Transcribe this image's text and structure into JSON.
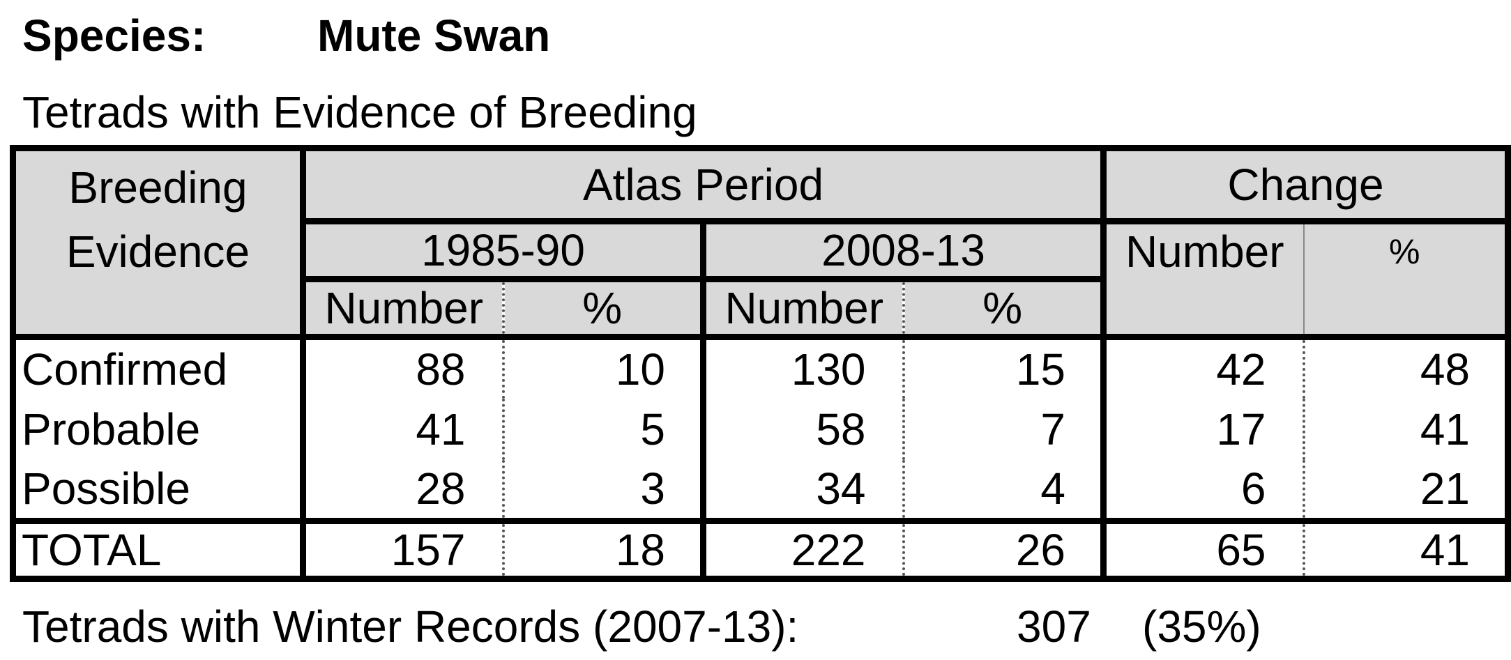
{
  "species_label": "Species:",
  "species_name": "Mute Swan",
  "subtitle": "Tetrads with Evidence of Breeding",
  "table": {
    "breeding_evidence_line1": "Breeding",
    "breeding_evidence_line2": "Evidence",
    "atlas_period": "Atlas Period",
    "change": "Change",
    "period1": "1985-90",
    "period2": "2008-13",
    "number_label": "Number",
    "pct_label": "%",
    "rows": [
      {
        "label": "Confirmed",
        "n1": "88",
        "p1": "10",
        "n2": "130",
        "p2": "15",
        "cn": "42",
        "cp": "48"
      },
      {
        "label": "Probable",
        "n1": "41",
        "p1": "5",
        "n2": "58",
        "p2": "7",
        "cn": "17",
        "cp": "41"
      },
      {
        "label": "Possible",
        "n1": "28",
        "p1": "3",
        "n2": "34",
        "p2": "4",
        "cn": "6",
        "cp": "21"
      }
    ],
    "total": {
      "label": "TOTAL",
      "n1": "157",
      "p1": "18",
      "n2": "222",
      "p2": "26",
      "cn": "65",
      "cp": "41"
    }
  },
  "winter": {
    "label": "Tetrads with Winter Records (2007-13):",
    "count": "307",
    "percent": "(35%)"
  }
}
